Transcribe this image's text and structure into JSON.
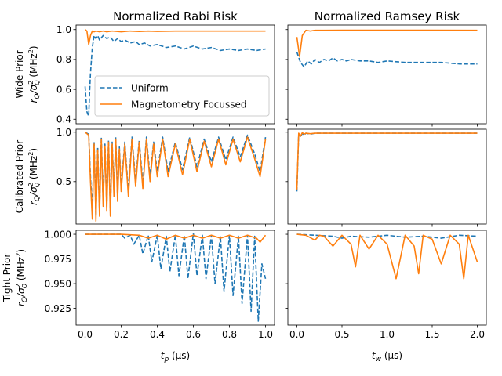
{
  "chart_data": {
    "type": "line",
    "columns": [
      {
        "title": "Normalized Rabi Risk",
        "xlabel": "$t_p$ ($\\mu$s)",
        "xlabel_main": "t",
        "xlabel_sub": "p",
        "xlabel_unit": " (μs)",
        "xlim": [
          -0.05,
          1.05
        ],
        "xticks": [
          "0.0",
          "0.2",
          "0.4",
          "0.6",
          "0.8",
          "1.0"
        ],
        "xtick_values": [
          0,
          0.2,
          0.4,
          0.6,
          0.8,
          1.0
        ]
      },
      {
        "title": "Normalized Ramsey Risk",
        "xlabel": "$t_w$ ($\\mu$s)",
        "xlabel_main": "t",
        "xlabel_sub": "w",
        "xlabel_unit": " (μs)",
        "xlim": [
          -0.1,
          2.1
        ],
        "xticks": [
          "0.0",
          "0.5",
          "1.0",
          "1.5",
          "2.0"
        ],
        "xtick_values": [
          0,
          0.5,
          1.0,
          1.5,
          2.0
        ]
      }
    ],
    "rows": [
      {
        "ylabel_top": "Wide Prior",
        "ylabel_bottom": "r_Q/σ_Q^2 (MHz^2)",
        "ylim": [
          0.37,
          1.03
        ],
        "yticks": [
          "0.4",
          "0.6",
          "0.8",
          "1.0"
        ],
        "ytick_values": [
          0.4,
          0.6,
          0.8,
          1.0
        ]
      },
      {
        "ylabel_top": "Calibrated Prior",
        "ylabel_bottom": "r_Q/σ_Q^2 (MHz^2)",
        "ylim": [
          0.07,
          1.03
        ],
        "yticks": [
          "0.5",
          "1.0"
        ],
        "ytick_values": [
          0.5,
          1.0
        ]
      },
      {
        "ylabel_top": "Tight Prior",
        "ylabel_bottom": "r_Q/σ_Q^2 (MHz^2)",
        "ylim": [
          0.908,
          1.004
        ],
        "yticks": [
          "0.925",
          "0.950",
          "0.975",
          "1.000"
        ],
        "ytick_values": [
          0.925,
          0.95,
          0.975,
          1.0
        ]
      }
    ],
    "legend": {
      "location": "lower-right of top-left panel",
      "entries": [
        {
          "label": "Uniform",
          "color": "#1f77b4",
          "style": "dashed"
        },
        {
          "label": "Magnetometry Focussed",
          "color": "#ff7f0e",
          "style": "solid"
        }
      ]
    },
    "series_colors": {
      "uniform": "#1f77b4",
      "magnetometry": "#ff7f0e"
    },
    "panels": [
      {
        "row": 0,
        "col": 0,
        "uniform": {
          "x": [
            0.0,
            0.01,
            0.02,
            0.025,
            0.03,
            0.04,
            0.05,
            0.06,
            0.07,
            0.08,
            0.1,
            0.12,
            0.14,
            0.16,
            0.18,
            0.2,
            0.22,
            0.25,
            0.28,
            0.3,
            0.33,
            0.36,
            0.4,
            0.45,
            0.5,
            0.55,
            0.6,
            0.65,
            0.7,
            0.75,
            0.8,
            0.85,
            0.9,
            0.95,
            1.0
          ],
          "y": [
            0.62,
            0.45,
            0.42,
            0.58,
            0.71,
            0.88,
            0.96,
            0.94,
            0.96,
            0.93,
            0.96,
            0.94,
            0.95,
            0.92,
            0.94,
            0.92,
            0.93,
            0.91,
            0.92,
            0.9,
            0.91,
            0.89,
            0.9,
            0.88,
            0.89,
            0.87,
            0.89,
            0.87,
            0.88,
            0.86,
            0.87,
            0.86,
            0.87,
            0.86,
            0.87
          ]
        },
        "magnetometry": {
          "x": [
            0.0,
            0.01,
            0.02,
            0.03,
            0.04,
            0.05,
            0.06,
            0.08,
            0.1,
            0.12,
            0.15,
            0.2,
            0.25,
            0.3,
            0.35,
            0.4,
            0.5,
            0.6,
            0.7,
            0.8,
            0.9,
            1.0
          ],
          "y": [
            1.0,
            0.99,
            0.9,
            0.96,
            0.99,
            0.985,
            0.99,
            0.985,
            0.99,
            0.985,
            0.99,
            0.985,
            0.99,
            0.987,
            0.99,
            0.988,
            0.99,
            0.99,
            0.99,
            0.99,
            0.99,
            0.99
          ]
        }
      },
      {
        "row": 0,
        "col": 1,
        "uniform": {
          "x": [
            0.0,
            0.04,
            0.08,
            0.12,
            0.16,
            0.2,
            0.25,
            0.3,
            0.35,
            0.4,
            0.45,
            0.5,
            0.55,
            0.6,
            0.7,
            0.8,
            0.9,
            1.0,
            1.2,
            1.4,
            1.6,
            1.8,
            2.0
          ],
          "y": [
            0.85,
            0.78,
            0.75,
            0.79,
            0.77,
            0.8,
            0.78,
            0.8,
            0.79,
            0.81,
            0.79,
            0.8,
            0.79,
            0.8,
            0.79,
            0.79,
            0.78,
            0.79,
            0.78,
            0.78,
            0.78,
            0.77,
            0.77
          ]
        },
        "magnetometry": {
          "x": [
            0.0,
            0.03,
            0.06,
            0.1,
            0.15,
            0.2,
            0.3,
            0.5,
            1.0,
            1.5,
            2.0
          ],
          "y": [
            0.95,
            0.82,
            0.96,
            0.995,
            0.99,
            0.995,
            0.995,
            0.996,
            0.996,
            0.996,
            0.995
          ]
        }
      },
      {
        "row": 1,
        "col": 0,
        "uniform": {
          "x": [
            0.0,
            0.02,
            0.03,
            0.04,
            0.05,
            0.06,
            0.07,
            0.08,
            0.09,
            0.1,
            0.11,
            0.12,
            0.13,
            0.14,
            0.15,
            0.16,
            0.17,
            0.18,
            0.19,
            0.2,
            0.22,
            0.24,
            0.26,
            0.28,
            0.3,
            0.32,
            0.34,
            0.36,
            0.38,
            0.4,
            0.43,
            0.46,
            0.5,
            0.54,
            0.58,
            0.62,
            0.66,
            0.7,
            0.74,
            0.78,
            0.82,
            0.86,
            0.9,
            0.94,
            0.97,
            1.0
          ],
          "y": [
            1.0,
            0.98,
            0.55,
            0.2,
            0.9,
            0.15,
            0.85,
            0.2,
            0.95,
            0.3,
            0.88,
            0.25,
            0.92,
            0.2,
            0.9,
            0.4,
            0.95,
            0.35,
            0.85,
            0.45,
            0.9,
            0.4,
            0.95,
            0.5,
            0.92,
            0.48,
            0.95,
            0.55,
            0.9,
            0.6,
            0.95,
            0.6,
            0.9,
            0.62,
            0.95,
            0.65,
            0.93,
            0.7,
            0.95,
            0.72,
            0.95,
            0.75,
            0.97,
            0.78,
            0.6,
            0.95
          ]
        },
        "magnetometry": {
          "x": [
            0.0,
            0.02,
            0.03,
            0.04,
            0.05,
            0.06,
            0.07,
            0.08,
            0.09,
            0.1,
            0.11,
            0.12,
            0.13,
            0.14,
            0.15,
            0.16,
            0.17,
            0.18,
            0.19,
            0.2,
            0.22,
            0.24,
            0.26,
            0.28,
            0.3,
            0.32,
            0.34,
            0.36,
            0.38,
            0.4,
            0.43,
            0.46,
            0.5,
            0.54,
            0.58,
            0.62,
            0.66,
            0.7,
            0.74,
            0.78,
            0.82,
            0.86,
            0.9,
            0.94,
            0.97,
            1.0
          ],
          "y": [
            1.0,
            0.97,
            0.5,
            0.12,
            0.88,
            0.1,
            0.82,
            0.15,
            0.93,
            0.25,
            0.86,
            0.2,
            0.9,
            0.15,
            0.88,
            0.35,
            0.93,
            0.3,
            0.83,
            0.4,
            0.88,
            0.35,
            0.93,
            0.45,
            0.9,
            0.43,
            0.93,
            0.5,
            0.88,
            0.55,
            0.93,
            0.55,
            0.88,
            0.57,
            0.93,
            0.6,
            0.91,
            0.65,
            0.93,
            0.67,
            0.93,
            0.7,
            0.95,
            0.73,
            0.55,
            0.93
          ]
        }
      },
      {
        "row": 1,
        "col": 1,
        "uniform": {
          "x": [
            0.0,
            0.02,
            0.04,
            0.06,
            0.08,
            0.1,
            0.15,
            0.2,
            0.3,
            0.5,
            1.0,
            1.5,
            2.0
          ],
          "y": [
            0.4,
            0.98,
            0.95,
            0.99,
            0.97,
            0.99,
            0.98,
            0.99,
            0.99,
            0.99,
            0.99,
            0.99,
            0.99
          ]
        },
        "magnetometry": {
          "x": [
            0.0,
            0.02,
            0.04,
            0.06,
            0.08,
            0.1,
            0.15,
            0.2,
            0.3,
            0.5,
            1.0,
            1.5,
            2.0
          ],
          "y": [
            0.42,
            0.99,
            0.96,
            0.995,
            0.98,
            0.99,
            0.985,
            0.99,
            0.99,
            0.99,
            0.99,
            0.99,
            0.99
          ]
        }
      },
      {
        "row": 2,
        "col": 0,
        "uniform": {
          "x": [
            0.0,
            0.1,
            0.2,
            0.22,
            0.25,
            0.27,
            0.3,
            0.32,
            0.35,
            0.37,
            0.4,
            0.42,
            0.45,
            0.47,
            0.5,
            0.52,
            0.55,
            0.57,
            0.6,
            0.62,
            0.65,
            0.67,
            0.7,
            0.72,
            0.75,
            0.77,
            0.8,
            0.82,
            0.85,
            0.87,
            0.9,
            0.92,
            0.94,
            0.96,
            0.98,
            1.0
          ],
          "y": [
            1.0,
            1.0,
            1.0,
            0.996,
            0.999,
            0.99,
            0.999,
            0.98,
            0.999,
            0.972,
            0.999,
            0.965,
            0.998,
            0.962,
            0.999,
            0.958,
            0.999,
            0.955,
            1.001,
            0.958,
            0.999,
            0.955,
            0.999,
            0.95,
            0.998,
            0.942,
            0.999,
            0.938,
            0.998,
            0.93,
            0.999,
            0.922,
            0.998,
            0.912,
            0.97,
            0.955
          ]
        },
        "magnetometry": {
          "x": [
            0.0,
            0.1,
            0.2,
            0.3,
            0.35,
            0.4,
            0.45,
            0.5,
            0.55,
            0.6,
            0.65,
            0.7,
            0.75,
            0.8,
            0.85,
            0.9,
            0.95,
            0.97,
            1.0
          ],
          "y": [
            1.0,
            1.0,
            1.0,
            0.999,
            0.996,
            0.999,
            0.995,
            0.999,
            0.996,
            0.999,
            0.996,
            0.999,
            0.996,
            0.999,
            0.996,
            0.999,
            0.996,
            0.992,
            0.999
          ]
        }
      },
      {
        "row": 2,
        "col": 1,
        "uniform": {
          "x": [
            0.0,
            0.2,
            0.4,
            0.5,
            0.6,
            0.8,
            1.0,
            1.2,
            1.4,
            1.6,
            1.8,
            2.0
          ],
          "y": [
            1.0,
            0.999,
            0.998,
            0.996,
            0.998,
            0.997,
            0.999,
            0.997,
            0.998,
            0.996,
            0.999,
            0.998
          ]
        },
        "magnetometry": {
          "x": [
            0.0,
            0.1,
            0.2,
            0.25,
            0.3,
            0.4,
            0.5,
            0.6,
            0.65,
            0.7,
            0.8,
            0.9,
            1.0,
            1.1,
            1.2,
            1.3,
            1.35,
            1.4,
            1.5,
            1.6,
            1.7,
            1.8,
            1.85,
            1.9,
            2.0
          ],
          "y": [
            1.0,
            0.999,
            0.994,
            0.999,
            0.998,
            0.988,
            0.999,
            0.99,
            0.967,
            0.999,
            0.985,
            0.999,
            0.99,
            0.955,
            0.999,
            0.988,
            0.96,
            0.999,
            0.995,
            0.97,
            0.999,
            0.99,
            0.955,
            0.999,
            0.972
          ]
        }
      }
    ]
  }
}
